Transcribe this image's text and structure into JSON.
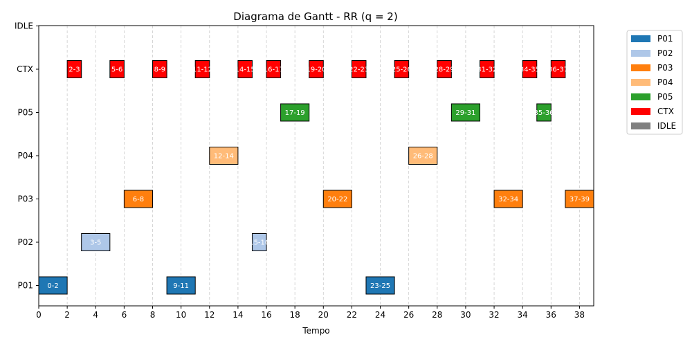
{
  "chart_data": {
    "type": "gantt",
    "title": "Diagrama de Gantt - RR (q = 2)",
    "xlabel": "Tempo",
    "ylabel": "",
    "xlim": [
      0,
      39
    ],
    "x_ticks": [
      0,
      2,
      4,
      6,
      8,
      10,
      12,
      14,
      16,
      18,
      20,
      22,
      24,
      26,
      28,
      30,
      32,
      34,
      36,
      38
    ],
    "rows": [
      "P01",
      "P02",
      "P03",
      "P04",
      "P05",
      "CTX",
      "IDLE"
    ],
    "grid": "vertical dashed",
    "legend_position": "outside-right",
    "legend": [
      {
        "name": "P01",
        "color": "#1f77b4"
      },
      {
        "name": "P02",
        "color": "#aec7e8"
      },
      {
        "name": "P03",
        "color": "#ff7f0e"
      },
      {
        "name": "P04",
        "color": "#ffbb78"
      },
      {
        "name": "P05",
        "color": "#2ca02c"
      },
      {
        "name": "CTX",
        "color": "#ff0000"
      },
      {
        "name": "IDLE",
        "color": "#808080"
      }
    ],
    "segments": [
      {
        "row": "P01",
        "start": 0,
        "end": 2,
        "label": "0-2"
      },
      {
        "row": "CTX",
        "start": 2,
        "end": 3,
        "label": "2-3"
      },
      {
        "row": "P02",
        "start": 3,
        "end": 5,
        "label": "3-5"
      },
      {
        "row": "CTX",
        "start": 5,
        "end": 6,
        "label": "5-6"
      },
      {
        "row": "P03",
        "start": 6,
        "end": 8,
        "label": "6-8"
      },
      {
        "row": "CTX",
        "start": 8,
        "end": 9,
        "label": "8-9"
      },
      {
        "row": "P01",
        "start": 9,
        "end": 11,
        "label": "9-11"
      },
      {
        "row": "CTX",
        "start": 11,
        "end": 12,
        "label": "11-12"
      },
      {
        "row": "P04",
        "start": 12,
        "end": 14,
        "label": "12-14"
      },
      {
        "row": "CTX",
        "start": 14,
        "end": 15,
        "label": "14-15"
      },
      {
        "row": "P02",
        "start": 15,
        "end": 16,
        "label": "15-16"
      },
      {
        "row": "CTX",
        "start": 16,
        "end": 17,
        "label": "16-17"
      },
      {
        "row": "P05",
        "start": 17,
        "end": 19,
        "label": "17-19"
      },
      {
        "row": "CTX",
        "start": 19,
        "end": 20,
        "label": "19-20"
      },
      {
        "row": "P03",
        "start": 20,
        "end": 22,
        "label": "20-22"
      },
      {
        "row": "CTX",
        "start": 22,
        "end": 23,
        "label": "22-23"
      },
      {
        "row": "P01",
        "start": 23,
        "end": 25,
        "label": "23-25"
      },
      {
        "row": "CTX",
        "start": 25,
        "end": 26,
        "label": "25-26"
      },
      {
        "row": "P04",
        "start": 26,
        "end": 28,
        "label": "26-28"
      },
      {
        "row": "CTX",
        "start": 28,
        "end": 29,
        "label": "28-29"
      },
      {
        "row": "P05",
        "start": 29,
        "end": 31,
        "label": "29-31"
      },
      {
        "row": "CTX",
        "start": 31,
        "end": 32,
        "label": "31-32"
      },
      {
        "row": "P03",
        "start": 32,
        "end": 34,
        "label": "32-34"
      },
      {
        "row": "CTX",
        "start": 34,
        "end": 35,
        "label": "34-35"
      },
      {
        "row": "P05",
        "start": 35,
        "end": 36,
        "label": "35-36"
      },
      {
        "row": "CTX",
        "start": 36,
        "end": 37,
        "label": "36-37"
      },
      {
        "row": "P03",
        "start": 37,
        "end": 39,
        "label": "37-39"
      }
    ]
  }
}
